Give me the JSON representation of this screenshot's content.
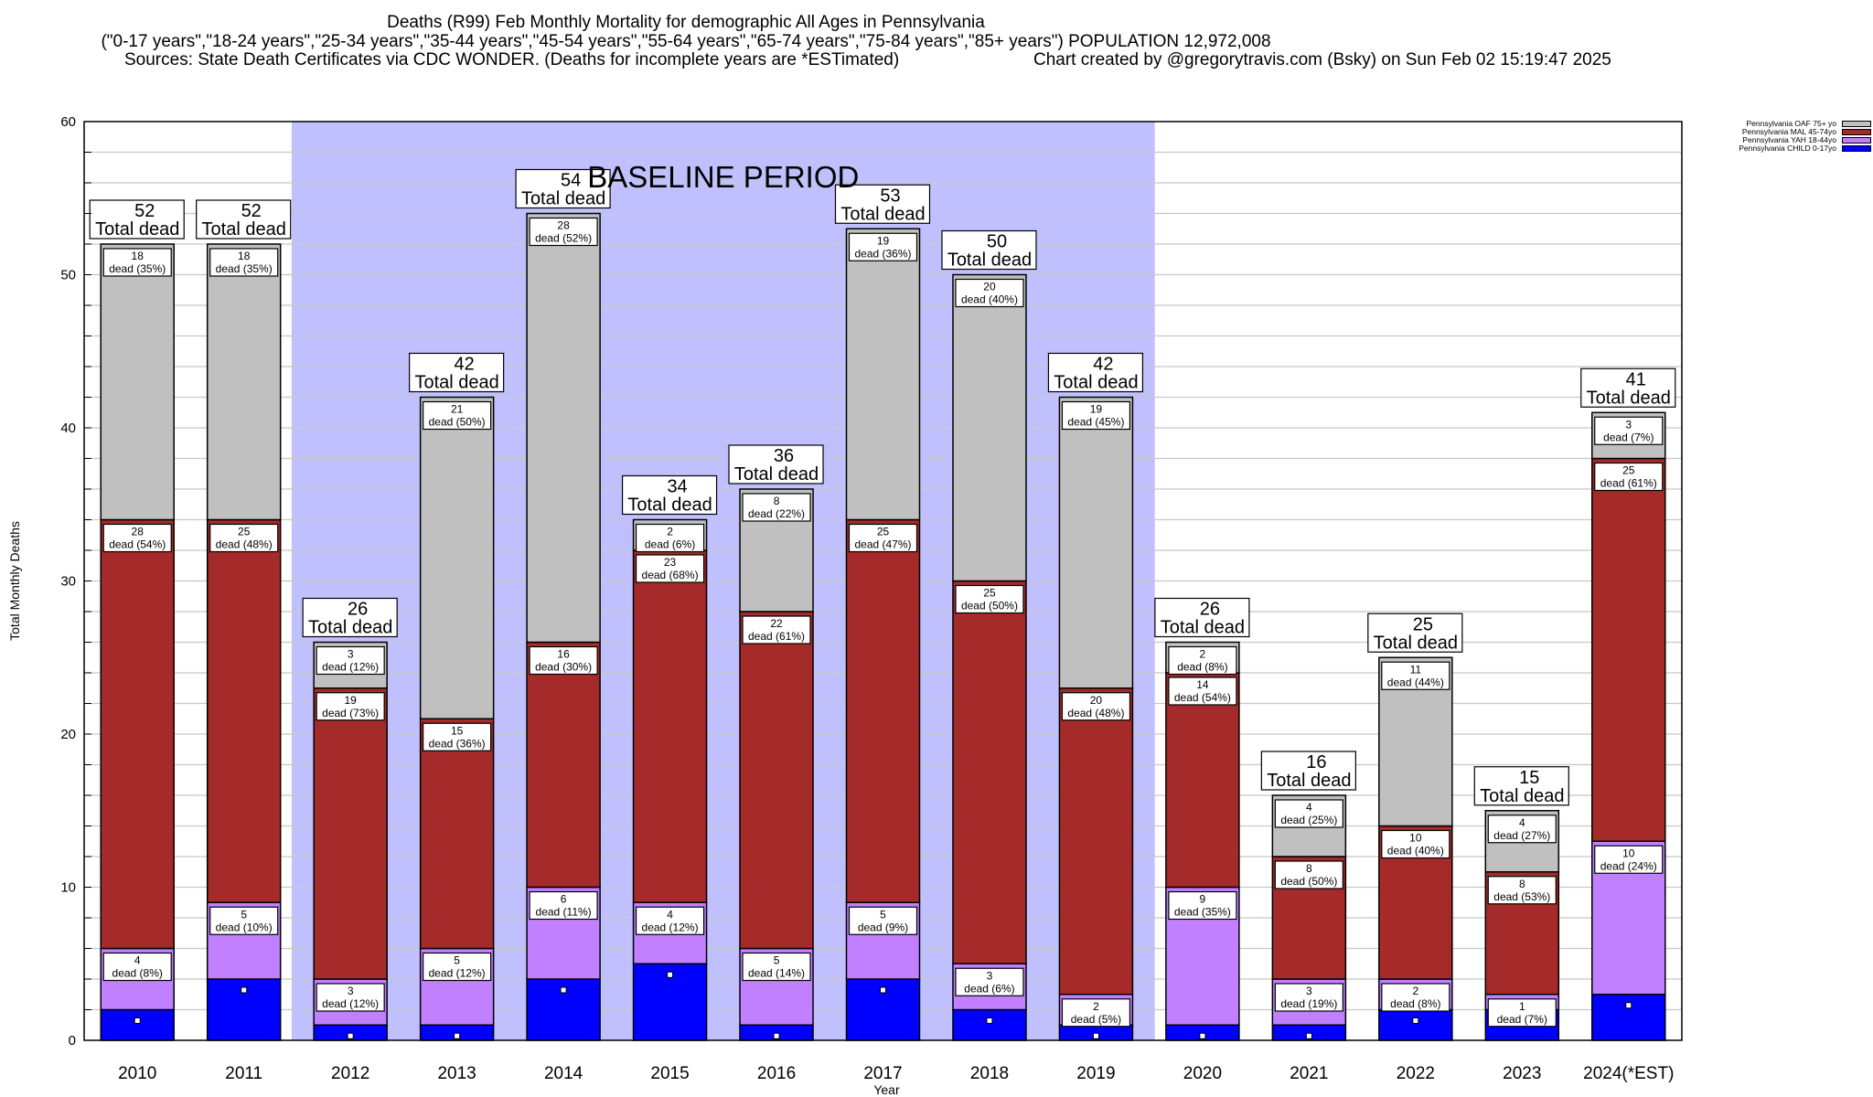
{
  "chart_data": {
    "type": "bar",
    "stacked": true,
    "title": "Deaths (R99) Feb Monthly Mortality for demographic All Ages in Pennsylvania",
    "subtitle": "(\"0-17 years\",\"18-24 years\",\"25-34 years\",\"35-44 years\",\"45-54 years\",\"55-64 years\",\"65-74 years\",\"75-84 years\",\"85+ years\") POPULATION 12,972,008",
    "sources": "Sources: State Death Certificates via CDC WONDER. (Deaths for incomplete years are *ESTimated)",
    "credit": "Chart created by @gregorytravis.com (Bsky) on Sun Feb 02 15:19:47 2025",
    "xlabel": "Year",
    "ylabel": "Total Monthly Deaths",
    "ylim": [
      0,
      60
    ],
    "yticks": [
      0,
      10,
      20,
      30,
      40,
      50,
      60
    ],
    "grid": true,
    "legend_position": "top-right",
    "categories": [
      "2010",
      "2011",
      "2012",
      "2013",
      "2014",
      "2015",
      "2016",
      "2017",
      "2018",
      "2019",
      "2020",
      "2021",
      "2022",
      "2023",
      "2024(*EST)"
    ],
    "series": [
      {
        "name": "Pennsylvania CHILD 0-17yo",
        "color": "#0000ff",
        "labeled": false,
        "values": [
          2,
          4,
          1,
          1,
          4,
          5,
          1,
          4,
          2,
          1,
          1,
          1,
          2,
          2,
          3
        ]
      },
      {
        "name": "Pennsylvania YAH 18-44yo",
        "color": "#c080ff",
        "labeled": true,
        "values": [
          4,
          5,
          3,
          5,
          6,
          4,
          5,
          5,
          3,
          2,
          9,
          3,
          2,
          1,
          10
        ],
        "percents": [
          8,
          10,
          12,
          12,
          11,
          12,
          14,
          9,
          6,
          5,
          35,
          19,
          8,
          7,
          24
        ]
      },
      {
        "name": "Pennsylvania MAL 45-74yo",
        "color": "#a52a2a",
        "labeled": true,
        "values": [
          28,
          25,
          19,
          15,
          16,
          23,
          22,
          25,
          25,
          20,
          14,
          8,
          10,
          8,
          25
        ],
        "percents": [
          54,
          48,
          73,
          36,
          30,
          68,
          61,
          47,
          50,
          48,
          54,
          50,
          40,
          53,
          61
        ]
      },
      {
        "name": "Pennsylvania OAF 75+ yo",
        "color": "#c0c0c0",
        "labeled": true,
        "values": [
          18,
          18,
          3,
          21,
          28,
          2,
          8,
          19,
          20,
          19,
          2,
          4,
          11,
          4,
          3
        ],
        "percents": [
          35,
          35,
          12,
          50,
          52,
          6,
          22,
          36,
          40,
          45,
          8,
          25,
          44,
          27,
          7
        ]
      }
    ],
    "totals": [
      52,
      52,
      26,
      42,
      54,
      34,
      36,
      53,
      50,
      42,
      26,
      16,
      25,
      15,
      41
    ],
    "total_label_suffix": "Total dead",
    "segment_label_word": "dead",
    "annotation": {
      "text": "BASELINE PERIOD",
      "from": "2012",
      "to": "2019",
      "color": "#c0c0ff"
    },
    "legend_order": [
      "Pennsylvania OAF 75+ yo",
      "Pennsylvania MAL 45-74yo",
      "Pennsylvania YAH 18-44yo",
      "Pennsylvania CHILD 0-17yo"
    ]
  }
}
